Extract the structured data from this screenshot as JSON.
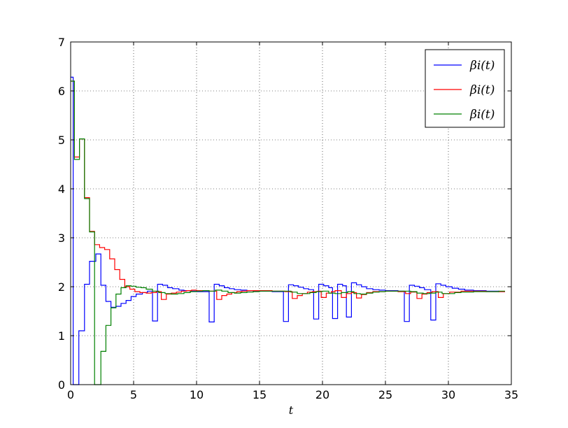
{
  "chart_data": {
    "type": "line",
    "step": true,
    "xlabel": "t",
    "ylabel": "",
    "xlim": [
      0,
      35
    ],
    "ylim": [
      0,
      7
    ],
    "x_ticks": [
      0,
      5,
      10,
      15,
      20,
      25,
      30,
      35
    ],
    "y_ticks": [
      0,
      1,
      2,
      3,
      4,
      5,
      6,
      7
    ],
    "x_tick_labels": [
      "0",
      "5",
      "10",
      "15",
      "20",
      "25",
      "30",
      "35"
    ],
    "y_tick_labels": [
      "0",
      "1",
      "2",
      "3",
      "4",
      "5",
      "6",
      "7"
    ],
    "grid": true,
    "legend_position": "top-right",
    "series": [
      {
        "name": "βi(t)",
        "color": "#0000ff",
        "points": [
          [
            0,
            6.28
          ],
          [
            0.2,
            0.0
          ],
          [
            0.65,
            1.1
          ],
          [
            1.1,
            2.05
          ],
          [
            1.5,
            2.52
          ],
          [
            2.0,
            2.67
          ],
          [
            2.4,
            2.03
          ],
          [
            2.8,
            1.7
          ],
          [
            3.2,
            1.58
          ],
          [
            3.6,
            1.6
          ],
          [
            4.0,
            1.66
          ],
          [
            4.4,
            1.72
          ],
          [
            4.8,
            1.8
          ],
          [
            5.2,
            1.85
          ],
          [
            5.7,
            1.88
          ],
          [
            6.1,
            1.91
          ],
          [
            6.5,
            1.3
          ],
          [
            6.9,
            2.05
          ],
          [
            7.3,
            2.03
          ],
          [
            7.7,
            1.98
          ],
          [
            8.1,
            1.96
          ],
          [
            8.6,
            1.93
          ],
          [
            9.0,
            1.92
          ],
          [
            9.5,
            1.91
          ],
          [
            10.0,
            1.9
          ],
          [
            10.6,
            1.9
          ],
          [
            11.0,
            1.28
          ],
          [
            11.4,
            2.05
          ],
          [
            11.8,
            2.02
          ],
          [
            12.2,
            1.98
          ],
          [
            12.6,
            1.96
          ],
          [
            13.0,
            1.94
          ],
          [
            13.5,
            1.93
          ],
          [
            14.0,
            1.92
          ],
          [
            14.5,
            1.91
          ],
          [
            15.0,
            1.91
          ],
          [
            16.0,
            1.9
          ],
          [
            16.9,
            1.29
          ],
          [
            17.3,
            2.04
          ],
          [
            17.7,
            2.02
          ],
          [
            18.1,
            1.99
          ],
          [
            18.5,
            1.96
          ],
          [
            18.9,
            1.94
          ],
          [
            19.3,
            1.34
          ],
          [
            19.7,
            2.05
          ],
          [
            20.1,
            2.02
          ],
          [
            20.5,
            1.98
          ],
          [
            20.8,
            1.35
          ],
          [
            21.2,
            2.05
          ],
          [
            21.6,
            2.02
          ],
          [
            21.9,
            1.38
          ],
          [
            22.3,
            2.08
          ],
          [
            22.7,
            2.04
          ],
          [
            23.1,
            2.0
          ],
          [
            23.5,
            1.96
          ],
          [
            24.0,
            1.94
          ],
          [
            24.5,
            1.93
          ],
          [
            25.0,
            1.92
          ],
          [
            26.0,
            1.91
          ],
          [
            26.5,
            1.29
          ],
          [
            26.9,
            2.03
          ],
          [
            27.3,
            2.01
          ],
          [
            27.7,
            1.98
          ],
          [
            28.1,
            1.94
          ],
          [
            28.6,
            1.32
          ],
          [
            29.0,
            2.06
          ],
          [
            29.4,
            2.03
          ],
          [
            29.8,
            2.0
          ],
          [
            30.3,
            1.97
          ],
          [
            30.8,
            1.95
          ],
          [
            31.3,
            1.93
          ],
          [
            32.0,
            1.92
          ],
          [
            33.0,
            1.91
          ],
          [
            34.0,
            1.9
          ],
          [
            34.5,
            1.9
          ]
        ]
      },
      {
        "name": "βi(t)",
        "color": "#ff0000",
        "points": [
          [
            0,
            6.2
          ],
          [
            0.3,
            4.65
          ],
          [
            0.7,
            5.02
          ],
          [
            1.1,
            3.82
          ],
          [
            1.5,
            3.13
          ],
          [
            1.9,
            2.86
          ],
          [
            2.3,
            2.8
          ],
          [
            2.7,
            2.76
          ],
          [
            3.1,
            2.57
          ],
          [
            3.5,
            2.35
          ],
          [
            3.9,
            2.15
          ],
          [
            4.3,
            2.0
          ],
          [
            4.7,
            1.95
          ],
          [
            5.1,
            1.9
          ],
          [
            5.5,
            1.88
          ],
          [
            6.0,
            1.87
          ],
          [
            6.4,
            1.88
          ],
          [
            6.8,
            1.9
          ],
          [
            7.2,
            1.74
          ],
          [
            7.6,
            1.85
          ],
          [
            8.0,
            1.87
          ],
          [
            8.4,
            1.89
          ],
          [
            8.8,
            1.91
          ],
          [
            9.2,
            1.92
          ],
          [
            9.6,
            1.93
          ],
          [
            10.0,
            1.92
          ],
          [
            10.5,
            1.92
          ],
          [
            11.0,
            1.91
          ],
          [
            11.6,
            1.74
          ],
          [
            12.0,
            1.82
          ],
          [
            12.4,
            1.85
          ],
          [
            12.8,
            1.88
          ],
          [
            13.2,
            1.9
          ],
          [
            13.6,
            1.91
          ],
          [
            14.0,
            1.92
          ],
          [
            15.0,
            1.92
          ],
          [
            16.0,
            1.91
          ],
          [
            17.0,
            1.9
          ],
          [
            17.6,
            1.76
          ],
          [
            18.0,
            1.82
          ],
          [
            18.4,
            1.86
          ],
          [
            18.8,
            1.89
          ],
          [
            19.2,
            1.9
          ],
          [
            19.6,
            1.91
          ],
          [
            19.9,
            1.78
          ],
          [
            20.3,
            1.87
          ],
          [
            20.7,
            1.9
          ],
          [
            21.0,
            1.92
          ],
          [
            21.5,
            1.78
          ],
          [
            21.9,
            1.86
          ],
          [
            22.3,
            1.88
          ],
          [
            22.7,
            1.77
          ],
          [
            23.1,
            1.84
          ],
          [
            23.5,
            1.88
          ],
          [
            24.0,
            1.9
          ],
          [
            25.0,
            1.91
          ],
          [
            26.0,
            1.9
          ],
          [
            26.6,
            1.86
          ],
          [
            27.0,
            1.89
          ],
          [
            27.5,
            1.76
          ],
          [
            27.9,
            1.85
          ],
          [
            28.3,
            1.88
          ],
          [
            28.7,
            1.9
          ],
          [
            29.2,
            1.78
          ],
          [
            29.6,
            1.86
          ],
          [
            30.1,
            1.89
          ],
          [
            31.0,
            1.91
          ],
          [
            32.0,
            1.91
          ],
          [
            33.0,
            1.9
          ],
          [
            34.0,
            1.9
          ],
          [
            34.5,
            1.9
          ]
        ]
      },
      {
        "name": "βi(t)",
        "color": "#008000",
        "points": [
          [
            0,
            6.2
          ],
          [
            0.3,
            4.6
          ],
          [
            0.7,
            5.02
          ],
          [
            1.1,
            3.8
          ],
          [
            1.5,
            3.12
          ],
          [
            1.9,
            0.0
          ],
          [
            2.3,
            0.0
          ],
          [
            2.4,
            0.68
          ],
          [
            2.8,
            1.21
          ],
          [
            3.2,
            1.57
          ],
          [
            3.6,
            1.85
          ],
          [
            4.0,
            1.98
          ],
          [
            4.4,
            2.02
          ],
          [
            4.8,
            2.01
          ],
          [
            5.2,
            1.99
          ],
          [
            5.6,
            1.98
          ],
          [
            6.0,
            1.95
          ],
          [
            6.5,
            1.91
          ],
          [
            7.0,
            1.88
          ],
          [
            7.5,
            1.86
          ],
          [
            8.0,
            1.85
          ],
          [
            8.5,
            1.86
          ],
          [
            9.0,
            1.88
          ],
          [
            9.5,
            1.9
          ],
          [
            10.0,
            1.91
          ],
          [
            10.5,
            1.92
          ],
          [
            11.0,
            1.91
          ],
          [
            11.5,
            1.93
          ],
          [
            12.0,
            1.91
          ],
          [
            12.5,
            1.88
          ],
          [
            13.0,
            1.87
          ],
          [
            13.5,
            1.88
          ],
          [
            14.0,
            1.89
          ],
          [
            14.5,
            1.9
          ],
          [
            15.0,
            1.91
          ],
          [
            16.0,
            1.91
          ],
          [
            17.0,
            1.91
          ],
          [
            17.5,
            1.89
          ],
          [
            18.0,
            1.86
          ],
          [
            18.5,
            1.86
          ],
          [
            19.0,
            1.88
          ],
          [
            19.5,
            1.9
          ],
          [
            20.0,
            1.91
          ],
          [
            20.5,
            1.87
          ],
          [
            21.0,
            1.86
          ],
          [
            21.5,
            1.88
          ],
          [
            22.0,
            1.9
          ],
          [
            22.5,
            1.86
          ],
          [
            23.0,
            1.85
          ],
          [
            23.5,
            1.87
          ],
          [
            24.0,
            1.89
          ],
          [
            24.5,
            1.9
          ],
          [
            25.0,
            1.91
          ],
          [
            26.0,
            1.91
          ],
          [
            27.0,
            1.9
          ],
          [
            27.5,
            1.87
          ],
          [
            28.0,
            1.86
          ],
          [
            28.5,
            1.87
          ],
          [
            29.0,
            1.89
          ],
          [
            29.5,
            1.86
          ],
          [
            30.0,
            1.86
          ],
          [
            30.5,
            1.88
          ],
          [
            31.0,
            1.89
          ],
          [
            32.0,
            1.9
          ],
          [
            33.0,
            1.9
          ],
          [
            34.0,
            1.91
          ],
          [
            34.5,
            1.91
          ]
        ]
      }
    ]
  }
}
